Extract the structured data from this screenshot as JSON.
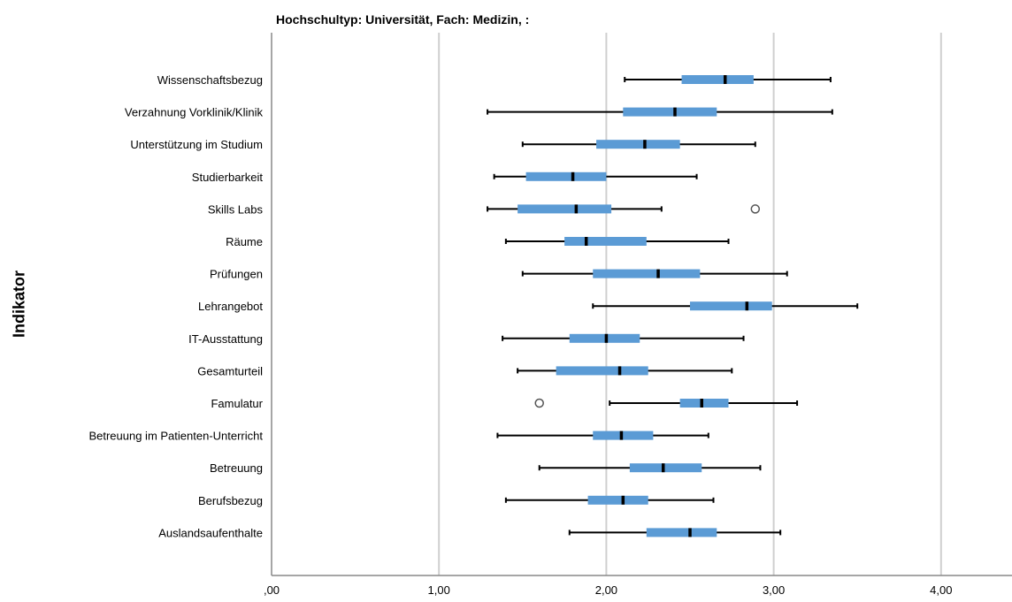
{
  "chart_data": {
    "type": "boxplot",
    "title": "Hochschultyp: Universität, Fach: Medizin,  :",
    "ylabel": "Indikator",
    "xlabel": "",
    "xlim": [
      0,
      4.4
    ],
    "xticks": [
      0,
      1,
      2,
      3,
      4
    ],
    "xtick_labels": [
      ",00",
      "1,00",
      "2,00",
      "3,00",
      "4,00"
    ],
    "grid": "vertical",
    "box_color": "#5b9bd5",
    "categories": [
      "Wissenschaftsbezug",
      "Verzahnung Vorklinik/Klinik",
      "Unterstützung im Studium",
      "Studierbarkeit",
      "Skills Labs",
      "Räume",
      "Prüfungen",
      "Lehrangebot",
      "IT-Ausstattung",
      "Gesamturteil",
      "Famulatur",
      "Betreuung im Patienten-Unterricht",
      "Betreuung",
      "Berufsbezug",
      "Auslandsaufenthalte"
    ],
    "boxes": [
      {
        "min": 2.11,
        "q1": 2.45,
        "median": 2.71,
        "q3": 2.88,
        "max": 3.34,
        "outliers": []
      },
      {
        "min": 1.29,
        "q1": 2.1,
        "median": 2.41,
        "q3": 2.66,
        "max": 3.35,
        "outliers": []
      },
      {
        "min": 1.5,
        "q1": 1.94,
        "median": 2.23,
        "q3": 2.44,
        "max": 2.89,
        "outliers": []
      },
      {
        "min": 1.33,
        "q1": 1.52,
        "median": 1.8,
        "q3": 2.0,
        "max": 2.54,
        "outliers": []
      },
      {
        "min": 1.29,
        "q1": 1.47,
        "median": 1.82,
        "q3": 2.03,
        "max": 2.33,
        "outliers": [
          2.89
        ]
      },
      {
        "min": 1.4,
        "q1": 1.75,
        "median": 1.88,
        "q3": 2.24,
        "max": 2.73,
        "outliers": []
      },
      {
        "min": 1.5,
        "q1": 1.92,
        "median": 2.31,
        "q3": 2.56,
        "max": 3.08,
        "outliers": []
      },
      {
        "min": 1.92,
        "q1": 2.5,
        "median": 2.84,
        "q3": 2.99,
        "max": 3.5,
        "outliers": []
      },
      {
        "min": 1.38,
        "q1": 1.78,
        "median": 2.0,
        "q3": 2.2,
        "max": 2.82,
        "outliers": []
      },
      {
        "min": 1.47,
        "q1": 1.7,
        "median": 2.08,
        "q3": 2.25,
        "max": 2.75,
        "outliers": []
      },
      {
        "min": 2.02,
        "q1": 2.44,
        "median": 2.57,
        "q3": 2.73,
        "max": 3.14,
        "outliers": [
          1.6
        ]
      },
      {
        "min": 1.35,
        "q1": 1.92,
        "median": 2.09,
        "q3": 2.28,
        "max": 2.61,
        "outliers": []
      },
      {
        "min": 1.6,
        "q1": 2.14,
        "median": 2.34,
        "q3": 2.57,
        "max": 2.92,
        "outliers": []
      },
      {
        "min": 1.4,
        "q1": 1.89,
        "median": 2.1,
        "q3": 2.25,
        "max": 2.64,
        "outliers": []
      },
      {
        "min": 1.78,
        "q1": 2.24,
        "median": 2.5,
        "q3": 2.66,
        "max": 3.04,
        "outliers": []
      }
    ]
  }
}
